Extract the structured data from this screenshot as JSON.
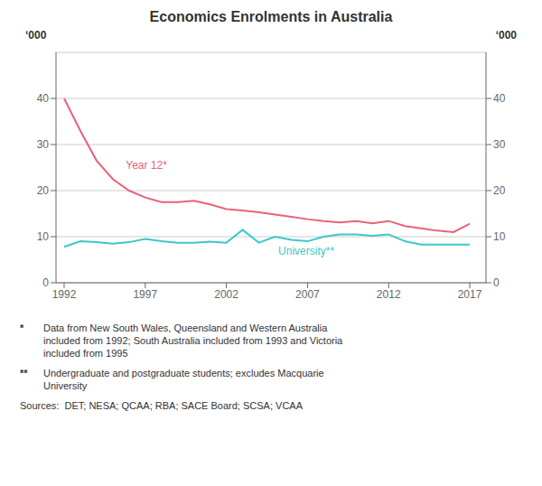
{
  "chart_data": {
    "type": "line",
    "title": "Economics Enrolments in Australia",
    "ylabel": "‘000",
    "y2label": "‘000",
    "x": [
      1992,
      1993,
      1994,
      1995,
      1996,
      1997,
      1998,
      1999,
      2000,
      2001,
      2002,
      2003,
      2004,
      2005,
      2006,
      2007,
      2008,
      2009,
      2010,
      2011,
      2012,
      2013,
      2014,
      2015,
      2016,
      2017
    ],
    "series": [
      {
        "name": "Year 12*",
        "color": "#e8627a",
        "values": [
          40.0,
          33.0,
          26.5,
          22.5,
          20.0,
          18.5,
          17.5,
          17.5,
          17.8,
          17.0,
          16.0,
          15.7,
          15.3,
          14.8,
          14.3,
          13.8,
          13.4,
          13.1,
          13.4,
          12.9,
          13.4,
          12.3,
          11.8,
          11.3,
          11.0,
          12.8
        ]
      },
      {
        "name": "University**",
        "color": "#3cc8c8",
        "values": [
          7.8,
          9.0,
          8.8,
          8.5,
          8.8,
          9.5,
          9.0,
          8.7,
          8.7,
          8.9,
          8.7,
          11.5,
          8.7,
          10.0,
          9.3,
          9.0,
          10.0,
          10.5,
          10.5,
          10.2,
          10.5,
          9.0,
          8.3,
          8.3,
          8.3,
          8.3
        ]
      }
    ],
    "xlim": [
      1991.5,
      2018
    ],
    "xticks": [
      1992,
      1997,
      2002,
      2007,
      2012,
      2017
    ],
    "ylim": [
      0,
      50
    ],
    "yticks": [
      0,
      10,
      20,
      30,
      40
    ],
    "y2lim": [
      0,
      50
    ],
    "y2ticks": [
      0,
      10,
      20,
      30,
      40
    ],
    "grid": true,
    "footnotes": [
      {
        "mark": "*",
        "text": "Data from New South Wales, Queensland and Western Australia\nincluded from 1992; South Australia included from 1993 and Victoria\nincluded from 1995"
      },
      {
        "mark": "**",
        "text": "Undergraduate and postgraduate students; excludes Macquarie\nUniversity"
      }
    ],
    "source": "Sources:  DET; NESA; QCAA; RBA; SACE Board; SCSA; VCAA"
  }
}
